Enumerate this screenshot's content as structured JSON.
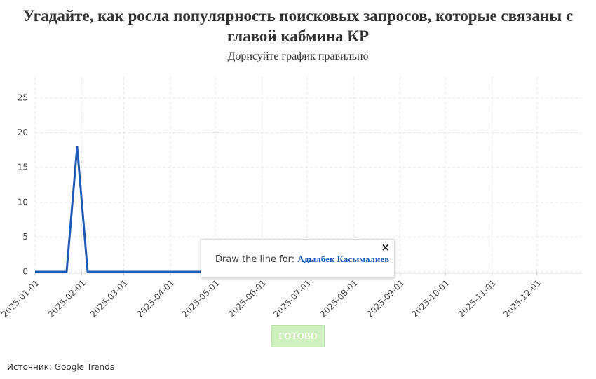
{
  "chart_data": {
    "type": "line",
    "title": "Угадайте, как росла популярность поисковых запросов, которые связаны с главой кабмина КР",
    "subtitle": "Дорисуйте график правильно",
    "x": [
      "2025-01-01",
      "2025-01-22",
      "2025-01-29",
      "2025-02-05",
      "2025-04-27"
    ],
    "series": [
      {
        "name": "Адылбек Касымалиев",
        "color": "#1f5bb5",
        "values": [
          0,
          0,
          18,
          0,
          0
        ]
      }
    ],
    "xlim": [
      "2025-01-01",
      "2025-12-31"
    ],
    "xticks": [
      "2025-01-01",
      "2025-02-01",
      "2025-03-01",
      "2025-04-01",
      "2025-05-01",
      "2025-06-01",
      "2025-07-01",
      "2025-08-01",
      "2025-09-01",
      "2025-10-01",
      "2025-11-01",
      "2025-12-01"
    ],
    "ylim": [
      0,
      26
    ],
    "yticks": [
      0,
      5,
      10,
      15,
      20,
      25
    ],
    "grid": true
  },
  "ui": {
    "prompt": "Draw the line for:",
    "button": "ГОТОВО",
    "source": "Источник: Google Trends"
  }
}
